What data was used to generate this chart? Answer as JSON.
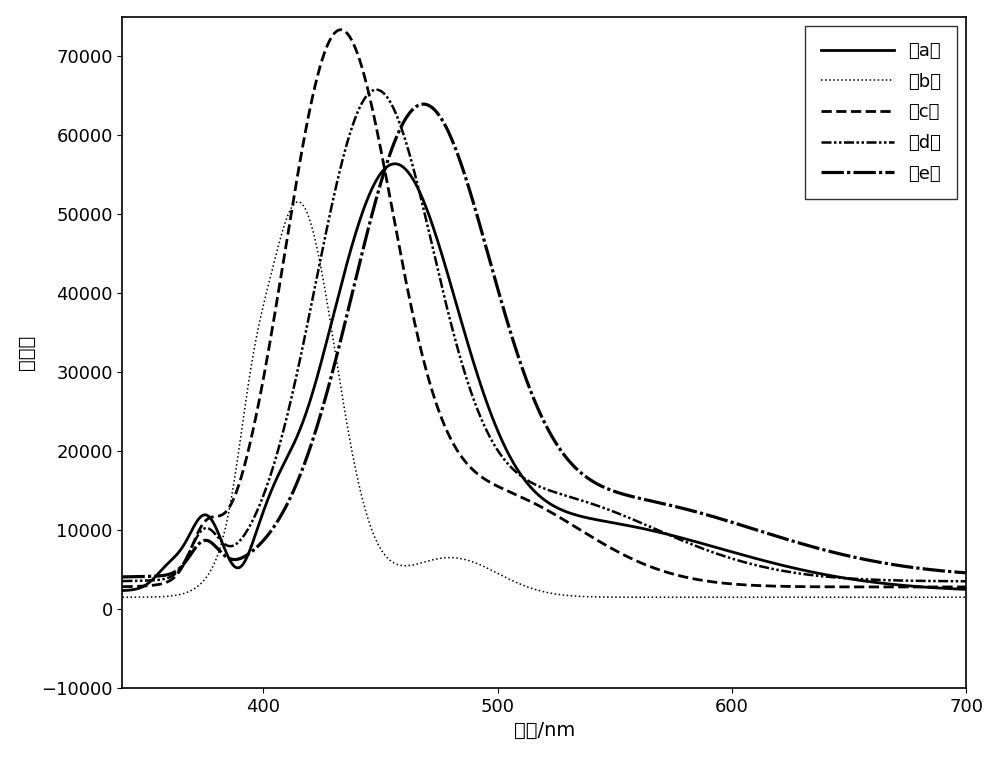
{
  "title": "",
  "xlabel": "波长/nm",
  "ylabel": "吸光率",
  "xlim": [
    340,
    700
  ],
  "ylim": [
    -10000,
    75000
  ],
  "xticks": [
    400,
    500,
    600,
    700
  ],
  "yticks": [
    -10000,
    0,
    10000,
    20000,
    30000,
    40000,
    50000,
    60000,
    70000
  ],
  "legend_labels": [
    "（a）",
    "（b）",
    "（c）",
    "（d）",
    "（e）"
  ],
  "background_color": "#ffffff"
}
